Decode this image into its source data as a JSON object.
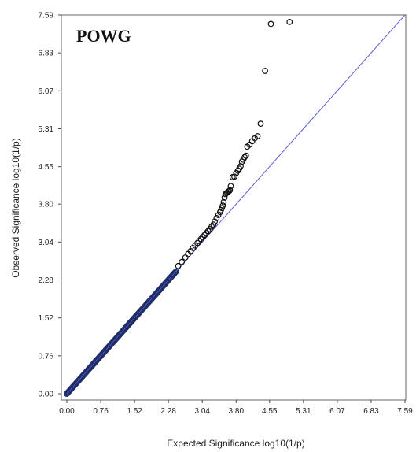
{
  "chart_data": {
    "type": "scatter",
    "title": "POWG",
    "xlabel": "Expected Significance log10(1/p)",
    "ylabel": "Observed Significance log10(1/p)",
    "xlim": [
      0,
      7.59
    ],
    "ylim": [
      0,
      7.59
    ],
    "x_ticks": [
      "0.00",
      "0.76",
      "1.52",
      "2.28",
      "3.04",
      "3.80",
      "4.55",
      "5.31",
      "6.07",
      "6.83",
      "7.59"
    ],
    "y_ticks": [
      "0.00",
      "0.76",
      "1.52",
      "2.28",
      "3.04",
      "3.80",
      "4.55",
      "5.31",
      "6.07",
      "6.83",
      "7.59"
    ],
    "reference_line": {
      "from": [
        0,
        0
      ],
      "to": [
        7.59,
        7.59
      ],
      "color": "#5b5bd6"
    },
    "marker_color": "#111111",
    "dense_band_color": "#1f2f6a",
    "dense_band_range": [
      0,
      2.45
    ],
    "points": [
      [
        2.5,
        2.56
      ],
      [
        2.58,
        2.64
      ],
      [
        2.66,
        2.73
      ],
      [
        2.72,
        2.8
      ],
      [
        2.78,
        2.86
      ],
      [
        2.83,
        2.92
      ],
      [
        2.88,
        2.97
      ],
      [
        2.93,
        3.02
      ],
      [
        2.97,
        3.06
      ],
      [
        3.01,
        3.1
      ],
      [
        3.05,
        3.14
      ],
      [
        3.09,
        3.18
      ],
      [
        3.13,
        3.22
      ],
      [
        3.17,
        3.26
      ],
      [
        3.21,
        3.3
      ],
      [
        3.25,
        3.35
      ],
      [
        3.29,
        3.39
      ],
      [
        3.32,
        3.45
      ],
      [
        3.36,
        3.52
      ],
      [
        3.4,
        3.58
      ],
      [
        3.44,
        3.64
      ],
      [
        3.46,
        3.68
      ],
      [
        3.48,
        3.72
      ],
      [
        3.5,
        3.77
      ],
      [
        3.52,
        3.84
      ],
      [
        3.54,
        3.93
      ],
      [
        3.56,
        4.0
      ],
      [
        3.58,
        4.02
      ],
      [
        3.6,
        4.03
      ],
      [
        3.62,
        4.05
      ],
      [
        3.64,
        4.06
      ],
      [
        3.66,
        4.08
      ],
      [
        3.68,
        4.16
      ],
      [
        3.72,
        4.34
      ],
      [
        3.76,
        4.35
      ],
      [
        3.8,
        4.42
      ],
      [
        3.84,
        4.47
      ],
      [
        3.87,
        4.51
      ],
      [
        3.9,
        4.56
      ],
      [
        3.93,
        4.65
      ],
      [
        3.96,
        4.69
      ],
      [
        3.99,
        4.74
      ],
      [
        4.02,
        4.77
      ],
      [
        4.05,
        4.95
      ],
      [
        4.1,
        4.99
      ],
      [
        4.16,
        5.06
      ],
      [
        4.22,
        5.12
      ],
      [
        4.28,
        5.16
      ],
      [
        4.35,
        5.41
      ],
      [
        4.45,
        6.47
      ],
      [
        4.58,
        7.41
      ],
      [
        5.0,
        7.45
      ]
    ]
  }
}
